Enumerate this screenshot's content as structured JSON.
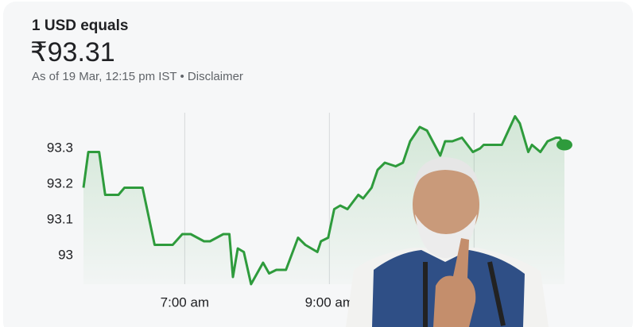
{
  "chart_data": {
    "type": "line",
    "title": "1 USD equals",
    "headline": "₹93.31",
    "subtitle": "As of 19 Mar, 12:15 pm IST • Disclaimer",
    "x": [
      336,
      340,
      349,
      354,
      365,
      370,
      385,
      395,
      410,
      418,
      425,
      436,
      441,
      452,
      457,
      460,
      464,
      469,
      475,
      485,
      490,
      496,
      504,
      514,
      520,
      530,
      533,
      539,
      544,
      549,
      555,
      564,
      568,
      575,
      580,
      586,
      595,
      601,
      607,
      615,
      621,
      632,
      636,
      642,
      650,
      659,
      665,
      668,
      675,
      683,
      694,
      698,
      705,
      708,
      715,
      721,
      728,
      731,
      735
    ],
    "series": [
      {
        "color": "#2e9b3c",
        "values": [
          93.19,
          93.29,
          93.29,
          93.17,
          93.17,
          93.19,
          93.19,
          93.03,
          93.03,
          93.06,
          93.06,
          93.04,
          93.04,
          93.06,
          93.06,
          92.94,
          93.02,
          93.01,
          92.92,
          92.98,
          92.95,
          92.96,
          92.96,
          93.05,
          93.03,
          93.01,
          93.04,
          93.05,
          93.13,
          93.14,
          93.13,
          93.17,
          93.16,
          93.19,
          93.24,
          93.26,
          93.25,
          93.26,
          93.32,
          93.36,
          93.35,
          93.28,
          93.32,
          93.32,
          93.33,
          93.29,
          93.3,
          93.31,
          93.31,
          93.31,
          93.39,
          93.37,
          93.29,
          93.31,
          93.29,
          93.32,
          93.33,
          93.33,
          93.31
        ]
      }
    ],
    "xlim": [
      336,
      735
    ],
    "xticks": [
      {
        "value": 420,
        "label": "7:00 am"
      },
      {
        "value": 540,
        "label": "9:00 am"
      },
      {
        "value": 660,
        "label": null
      }
    ],
    "ylim": [
      92.92,
      93.4
    ],
    "yticks": [
      93,
      93.1,
      93.2,
      93.3
    ],
    "grid": true
  }
}
